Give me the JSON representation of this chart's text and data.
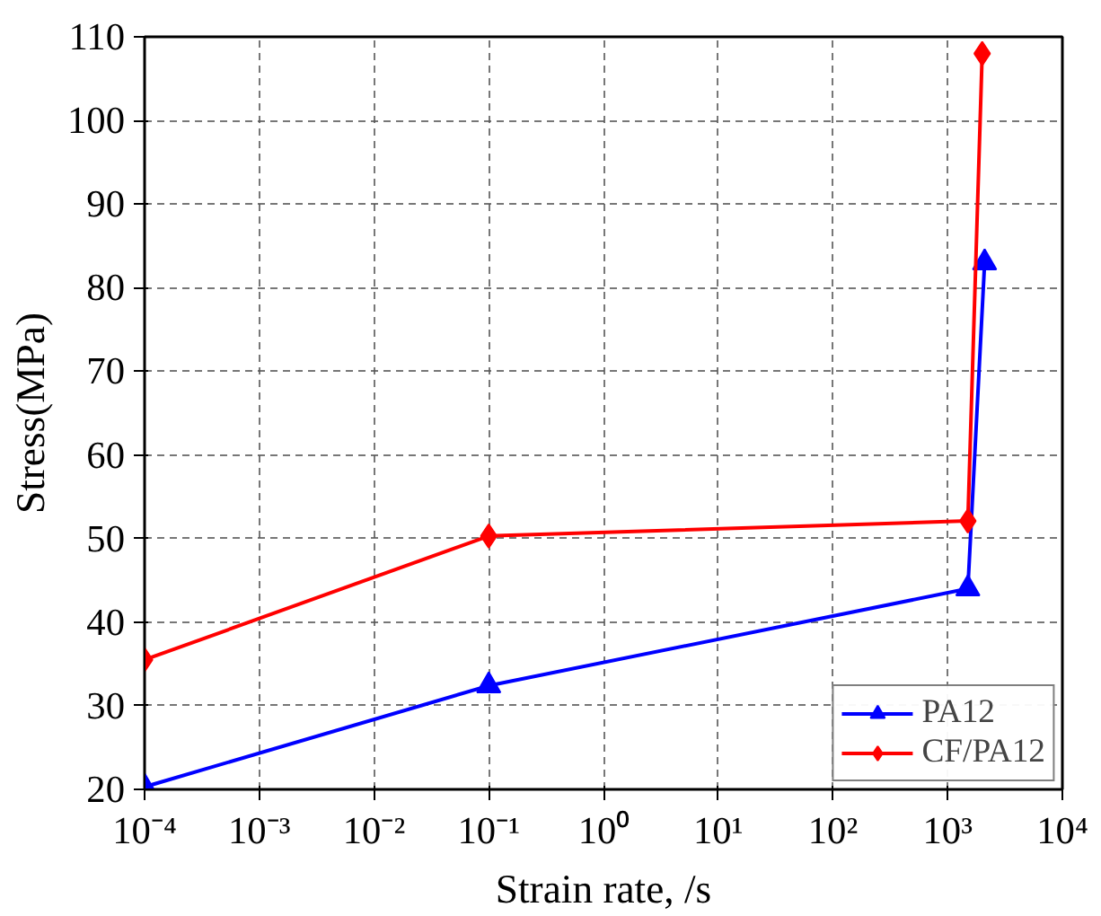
{
  "chart_data": {
    "type": "line",
    "xlabel": "Strain rate, /s",
    "ylabel": "Stress(MPa)",
    "log": "x",
    "grid": true,
    "legend": "bottom right",
    "xlim": [
      0.0001,
      10000
    ],
    "ylim": [
      20,
      110
    ],
    "xticks": [
      {
        "value": 0.0001,
        "label": "10⁻⁴"
      },
      {
        "value": 0.001,
        "label": "10⁻³"
      },
      {
        "value": 0.01,
        "label": "10⁻²"
      },
      {
        "value": 0.1,
        "label": "10⁻¹"
      },
      {
        "value": 1,
        "label": "10⁰"
      },
      {
        "value": 10,
        "label": "10¹"
      },
      {
        "value": 100,
        "label": "10²"
      },
      {
        "value": 1000,
        "label": "10³"
      },
      {
        "value": 10000,
        "label": "10⁴"
      }
    ],
    "yticks": [
      20,
      30,
      40,
      50,
      60,
      70,
      80,
      90,
      100,
      110
    ],
    "series": [
      {
        "name": "PA12",
        "color": "#0000ff",
        "marker": "triangle",
        "x": [
          0.0001,
          0.1,
          1500,
          2100
        ],
        "values": [
          20.3,
          32.4,
          44,
          83
        ]
      },
      {
        "name": "CF/PA12",
        "color": "#ff0000",
        "marker": "diamond",
        "x": [
          0.0001,
          0.1,
          1500,
          2000
        ],
        "values": [
          35.5,
          50.3,
          52.1,
          108
        ]
      }
    ]
  }
}
